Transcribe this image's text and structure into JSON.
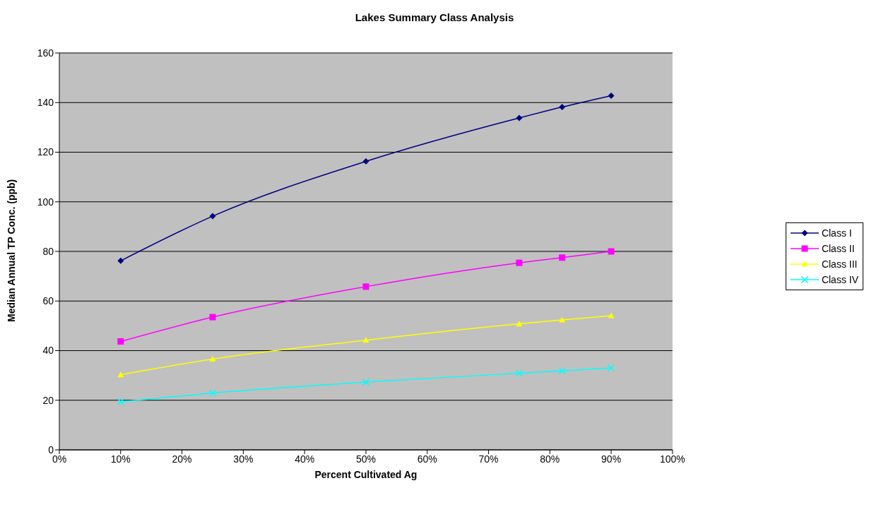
{
  "chart_data": {
    "type": "line",
    "title": "Lakes Summary Class Analysis",
    "xlabel": "Percent Cultivated Ag",
    "ylabel": "Median Annual TP Conc. (ppb)",
    "x": [
      10,
      25,
      50,
      75,
      82,
      90
    ],
    "series": [
      {
        "name": "Class I",
        "color": "#000080",
        "marker": "diamond",
        "values": [
          76.2,
          94.2,
          116.3,
          133.8,
          138.2,
          142.8
        ]
      },
      {
        "name": "Class II",
        "color": "#ff00ff",
        "marker": "square",
        "values": [
          43.7,
          53.5,
          65.8,
          75.4,
          77.5,
          80.0
        ]
      },
      {
        "name": "Class III",
        "color": "#ffff00",
        "marker": "triangle",
        "values": [
          30.3,
          36.6,
          44.2,
          50.8,
          52.4,
          54.1
        ]
      },
      {
        "name": "Class IV",
        "color": "#00ffff",
        "marker": "cross",
        "values": [
          19.4,
          22.9,
          27.3,
          30.9,
          31.9,
          33.0
        ]
      }
    ],
    "xlim": [
      0,
      100
    ],
    "xticks": [
      {
        "value": 0,
        "label": "0%"
      },
      {
        "value": 10,
        "label": "10%"
      },
      {
        "value": 20,
        "label": "20%"
      },
      {
        "value": 30,
        "label": "30%"
      },
      {
        "value": 40,
        "label": "40%"
      },
      {
        "value": 50,
        "label": "50%"
      },
      {
        "value": 60,
        "label": "60%"
      },
      {
        "value": 70,
        "label": "70%"
      },
      {
        "value": 80,
        "label": "80%"
      },
      {
        "value": 90,
        "label": "90%"
      },
      {
        "value": 100,
        "label": "100%"
      }
    ],
    "ylim": [
      0,
      160
    ],
    "yticks": [
      0,
      20,
      40,
      60,
      80,
      100,
      120,
      140,
      160
    ],
    "grid": "y",
    "legend": "right",
    "line_style": "solid"
  }
}
